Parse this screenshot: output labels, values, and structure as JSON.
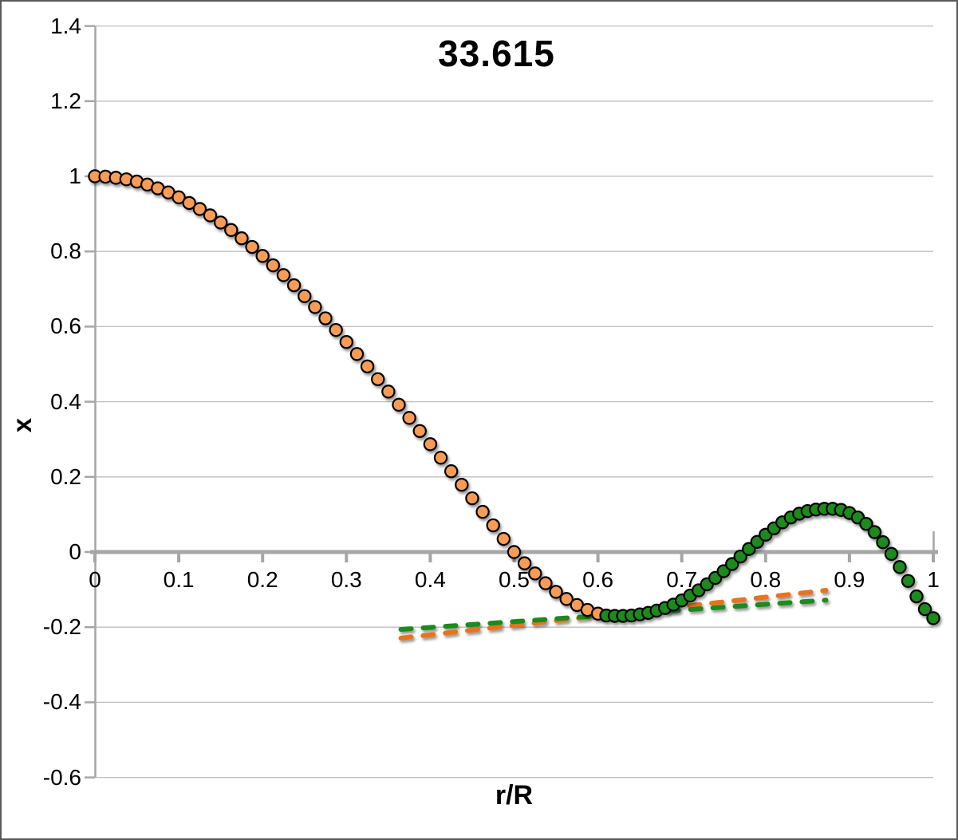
{
  "chart_data": {
    "type": "scatter",
    "title": "33.615",
    "xlabel": "r/R",
    "ylabel": "x",
    "xlim": [
      0,
      1.0
    ],
    "ylim": [
      -0.6,
      1.4
    ],
    "grid": "horizontal",
    "legend": "none",
    "x_tick_values": [
      0,
      0.1,
      0.2,
      0.3,
      0.4,
      0.5,
      0.6,
      0.7,
      0.8,
      0.9,
      1.0
    ],
    "x_tick_labels": [
      "0",
      "0.1",
      "0.2",
      "0.3",
      "0.4",
      "0.5",
      "0.6",
      "0.7",
      "0.8",
      "0.9",
      "1"
    ],
    "y_tick_values": [
      1.4,
      1.2,
      1.0,
      0.8,
      0.6,
      0.4,
      0.2,
      0,
      -0.2,
      -0.4,
      -0.6
    ],
    "y_tick_labels": [
      "1.4",
      "1.2",
      "1",
      "0.8",
      "0.6",
      "0.4",
      "0.2",
      "0",
      "-0.2",
      "-0.4",
      "-0.6"
    ],
    "colors": {
      "orange_marker_fill": "#F79C56",
      "green_marker_fill": "#1E8A1E",
      "marker_stroke": "#000000",
      "orange_dash": "#E9731B",
      "green_dash": "#1E8A1E",
      "grid": "#BFBFBF",
      "axis": "#A6A6A6",
      "text": "#000000",
      "frame_border": "#595959",
      "background": "#FFFFFF"
    },
    "series": [
      {
        "name": "orange-marker-series",
        "type": "scatter",
        "marker": "circle",
        "fill": "#F79C56",
        "stroke": "#000000",
        "points": [
          [
            0,
            1.0
          ],
          [
            0.0125,
            0.999
          ],
          [
            0.025,
            0.996
          ],
          [
            0.0375,
            0.992
          ],
          [
            0.05,
            0.986
          ],
          [
            0.0625,
            0.978
          ],
          [
            0.075,
            0.968
          ],
          [
            0.0875,
            0.957
          ],
          [
            0.1,
            0.944
          ],
          [
            0.1125,
            0.929
          ],
          [
            0.125,
            0.913
          ],
          [
            0.1375,
            0.896
          ],
          [
            0.15,
            0.877
          ],
          [
            0.1625,
            0.857
          ],
          [
            0.175,
            0.835
          ],
          [
            0.1875,
            0.812
          ],
          [
            0.2,
            0.788
          ],
          [
            0.2125,
            0.763
          ],
          [
            0.225,
            0.737
          ],
          [
            0.2375,
            0.71
          ],
          [
            0.25,
            0.681
          ],
          [
            0.2625,
            0.652
          ],
          [
            0.275,
            0.622
          ],
          [
            0.2875,
            0.591
          ],
          [
            0.3,
            0.559
          ],
          [
            0.3125,
            0.527
          ],
          [
            0.325,
            0.494
          ],
          [
            0.3375,
            0.46
          ],
          [
            0.35,
            0.427
          ],
          [
            0.3625,
            0.392
          ],
          [
            0.375,
            0.357
          ],
          [
            0.3875,
            0.322
          ],
          [
            0.4,
            0.287
          ],
          [
            0.4125,
            0.251
          ],
          [
            0.425,
            0.215
          ],
          [
            0.4375,
            0.179
          ],
          [
            0.45,
            0.143
          ],
          [
            0.4625,
            0.107
          ],
          [
            0.475,
            0.071
          ],
          [
            0.4875,
            0.035
          ],
          [
            0.5,
            0.0
          ],
          [
            0.5125,
            -0.03
          ],
          [
            0.525,
            -0.057
          ],
          [
            0.5375,
            -0.083
          ],
          [
            0.55,
            -0.106
          ],
          [
            0.5625,
            -0.125
          ],
          [
            0.575,
            -0.141
          ],
          [
            0.5875,
            -0.154
          ],
          [
            0.6,
            -0.164
          ]
        ]
      },
      {
        "name": "green-marker-series",
        "type": "scatter",
        "marker": "circle",
        "fill": "#1E8A1E",
        "stroke": "#000000",
        "points": [
          [
            0.61,
            -0.169
          ],
          [
            0.62,
            -0.17
          ],
          [
            0.63,
            -0.17
          ],
          [
            0.64,
            -0.169
          ],
          [
            0.65,
            -0.166
          ],
          [
            0.66,
            -0.162
          ],
          [
            0.67,
            -0.156
          ],
          [
            0.68,
            -0.149
          ],
          [
            0.69,
            -0.14
          ],
          [
            0.7,
            -0.129
          ],
          [
            0.71,
            -0.116
          ],
          [
            0.72,
            -0.102
          ],
          [
            0.73,
            -0.086
          ],
          [
            0.74,
            -0.069
          ],
          [
            0.75,
            -0.051
          ],
          [
            0.76,
            -0.032
          ],
          [
            0.77,
            -0.012
          ],
          [
            0.78,
            0.008
          ],
          [
            0.79,
            0.027
          ],
          [
            0.8,
            0.046
          ],
          [
            0.81,
            0.063
          ],
          [
            0.82,
            0.079
          ],
          [
            0.83,
            0.092
          ],
          [
            0.84,
            0.102
          ],
          [
            0.85,
            0.109
          ],
          [
            0.86,
            0.113
          ],
          [
            0.87,
            0.115
          ],
          [
            0.88,
            0.115
          ],
          [
            0.89,
            0.112
          ],
          [
            0.9,
            0.104
          ],
          [
            0.91,
            0.092
          ],
          [
            0.92,
            0.075
          ],
          [
            0.93,
            0.053
          ],
          [
            0.94,
            0.026
          ],
          [
            0.95,
            -0.005
          ],
          [
            0.96,
            -0.04
          ],
          [
            0.97,
            -0.077
          ],
          [
            0.98,
            -0.118
          ],
          [
            0.99,
            -0.152
          ],
          [
            1.0,
            -0.176
          ]
        ]
      },
      {
        "name": "orange-dashed-line",
        "type": "line",
        "style": "dashed",
        "color": "#E9731B",
        "points": [
          [
            0.365,
            -0.229
          ],
          [
            0.872,
            -0.102
          ]
        ]
      },
      {
        "name": "green-dashed-line",
        "type": "line",
        "style": "dashed",
        "color": "#1E8A1E",
        "points": [
          [
            0.365,
            -0.206
          ],
          [
            0.872,
            -0.128
          ]
        ]
      }
    ]
  }
}
